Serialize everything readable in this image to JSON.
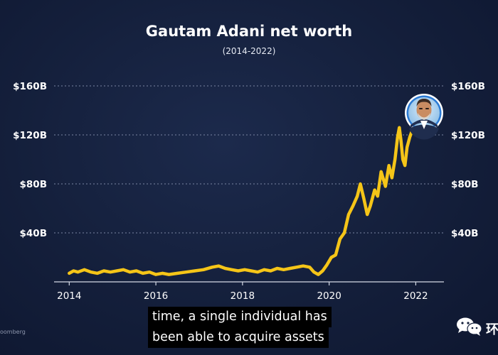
{
  "chart_data": {
    "type": "line",
    "title": "Gautam Adani net worth",
    "subtitle": "(2014-2022)",
    "xlabel": "",
    "ylabel": "",
    "xlim": [
      2013.65,
      2022.65
    ],
    "ylim": [
      0,
      160
    ],
    "x_ticks": [
      2014,
      2016,
      2018,
      2020,
      2022
    ],
    "x_tick_labels": [
      "2014",
      "2016",
      "2018",
      "2020",
      "2022"
    ],
    "y_ticks": [
      40,
      80,
      120,
      160
    ],
    "y_tick_labels": [
      "$40B",
      "$80B",
      "$120B",
      "$160B"
    ],
    "y_axes": "left and right",
    "grid": "horizontal dashed",
    "line_color": "#f5c518",
    "series": [
      {
        "x": [
          2014.0,
          2014.1,
          2014.2,
          2014.35,
          2014.5,
          2014.65,
          2014.8,
          2014.95,
          2015.1,
          2015.25,
          2015.4,
          2015.55,
          2015.7,
          2015.85,
          2016.0,
          2016.15,
          2016.3,
          2016.5,
          2016.7,
          2016.9,
          2017.1,
          2017.3,
          2017.45,
          2017.6,
          2017.75,
          2017.9,
          2018.05,
          2018.2,
          2018.35,
          2018.5,
          2018.65,
          2018.8,
          2018.95,
          2019.1,
          2019.25,
          2019.4,
          2019.55,
          2019.65,
          2019.75,
          2019.85,
          2019.95,
          2020.05,
          2020.15,
          2020.25,
          2020.35,
          2020.45,
          2020.55,
          2020.65,
          2020.72,
          2020.8,
          2020.88,
          2020.95,
          2021.05,
          2021.12,
          2021.2,
          2021.3,
          2021.38,
          2021.45,
          2021.52,
          2021.58,
          2021.62,
          2021.66,
          2021.7,
          2021.75,
          2021.8,
          2021.86,
          2021.92
        ],
        "y": [
          7,
          9,
          8,
          10,
          8,
          7,
          9,
          8,
          9,
          10,
          8,
          9,
          7,
          8,
          6,
          7,
          6,
          7,
          8,
          9,
          10,
          12,
          13,
          11,
          10,
          9,
          10,
          9,
          8,
          10,
          9,
          11,
          10,
          11,
          12,
          13,
          12,
          8,
          6,
          9,
          14,
          20,
          22,
          35,
          40,
          55,
          62,
          70,
          80,
          68,
          55,
          62,
          75,
          70,
          90,
          78,
          95,
          85,
          100,
          118,
          126,
          115,
          100,
          95,
          110,
          118,
          124
        ]
      }
    ]
  },
  "caption": {
    "line1": "time, a single individual has",
    "line2": "been able to acquire assets"
  },
  "source_text": "oomberg",
  "corner_text": "环"
}
